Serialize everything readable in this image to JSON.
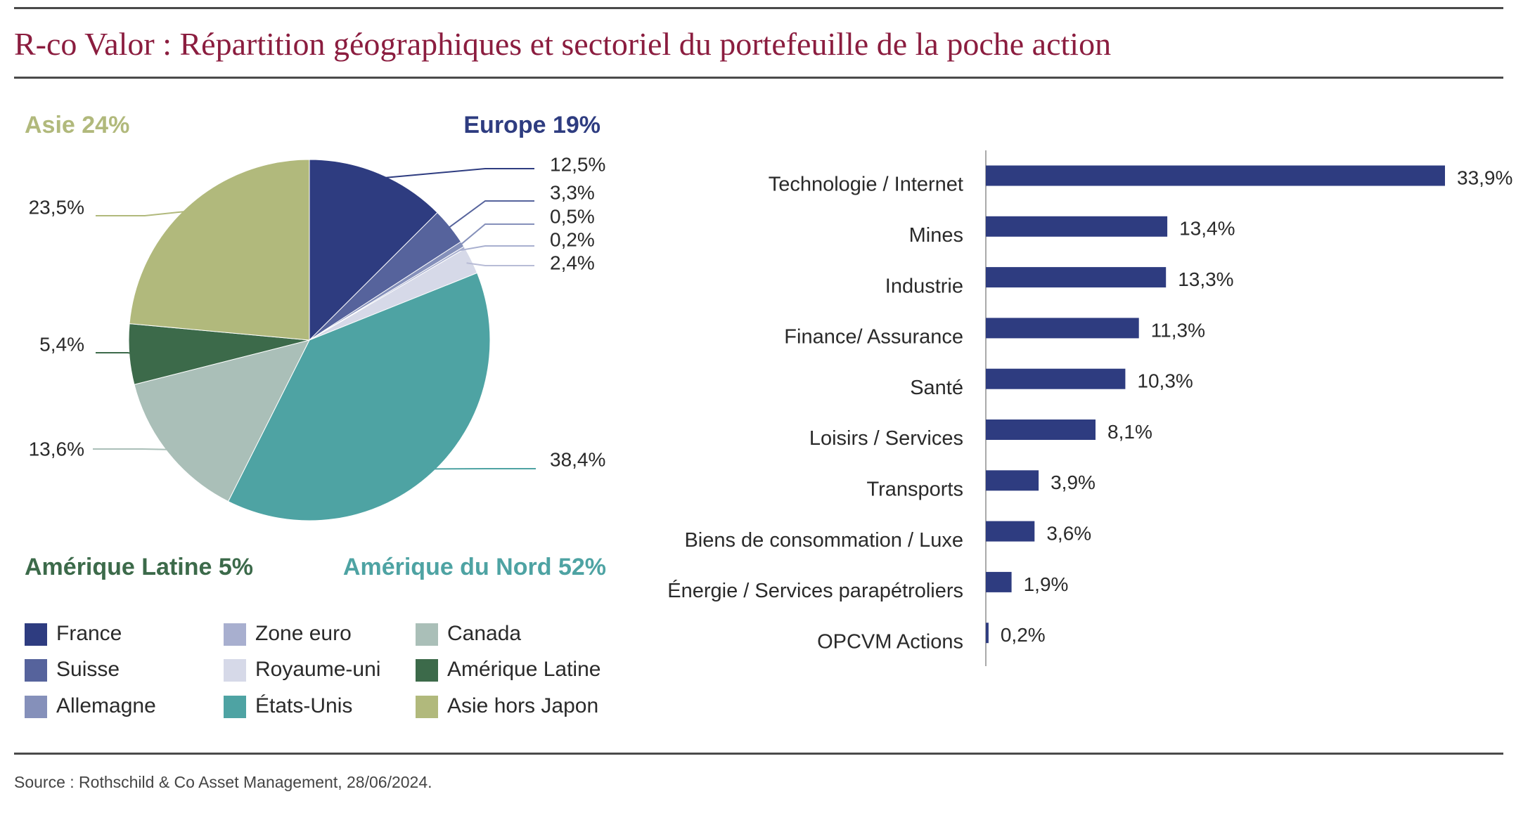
{
  "title": "R-co Valor : Répartition géographiques et sectoriel du portefeuille de la poche action",
  "source": "Source : Rothschild & Co Asset Management, 28/06/2024.",
  "chart_data": [
    {
      "type": "pie",
      "regions": [
        {
          "label": "Europe 19%",
          "color": "#2e3c80"
        },
        {
          "label": "Asie 24%",
          "color": "#b1b97c"
        },
        {
          "label": "Amérique Latine 5%",
          "color": "#3c6a4a"
        },
        {
          "label": "Amérique du Nord 52%",
          "color": "#4ea3a3"
        }
      ],
      "slices": [
        {
          "name": "France",
          "value": 12.5,
          "label": "12,5%",
          "color": "#2e3c80"
        },
        {
          "name": "Suisse",
          "value": 3.3,
          "label": "3,3%",
          "color": "#56639c"
        },
        {
          "name": "Allemagne",
          "value": 0.5,
          "label": "0,5%",
          "color": "#8590ba"
        },
        {
          "name": "Zone euro",
          "value": 0.2,
          "label": "0,2%",
          "color": "#a8afcf"
        },
        {
          "name": "Royaume-uni",
          "value": 2.4,
          "label": "2,4%",
          "color": "#d6d9e8"
        },
        {
          "name": "États-Unis",
          "value": 38.4,
          "label": "38,4%",
          "color": "#4ea3a3"
        },
        {
          "name": "Canada",
          "value": 13.6,
          "label": "13,6%",
          "color": "#aabfb8"
        },
        {
          "name": "Amérique Latine",
          "value": 5.4,
          "label": "5,4%",
          "color": "#3c6a4a"
        },
        {
          "name": "Asie hors Japon",
          "value": 23.5,
          "label": "23,5%",
          "color": "#b1b97c"
        }
      ]
    },
    {
      "type": "bar",
      "orientation": "horizontal",
      "color": "#2e3c80",
      "categories": [
        "Technologie / Internet",
        "Mines",
        "Industrie",
        "Finance/ Assurance",
        "Santé",
        "Loisirs / Services",
        "Transports",
        "Biens de consommation / Luxe",
        "Énergie / Services parapétroliers",
        "OPCVM Actions"
      ],
      "values": [
        33.9,
        13.4,
        13.3,
        11.3,
        10.3,
        8.1,
        3.9,
        3.6,
        1.9,
        0.2
      ],
      "value_labels": [
        "33,9%",
        "13,4%",
        "13,3%",
        "11,3%",
        "10,3%",
        "8,1%",
        "3,9%",
        "3,6%",
        "1,9%",
        "0,2%"
      ]
    }
  ]
}
